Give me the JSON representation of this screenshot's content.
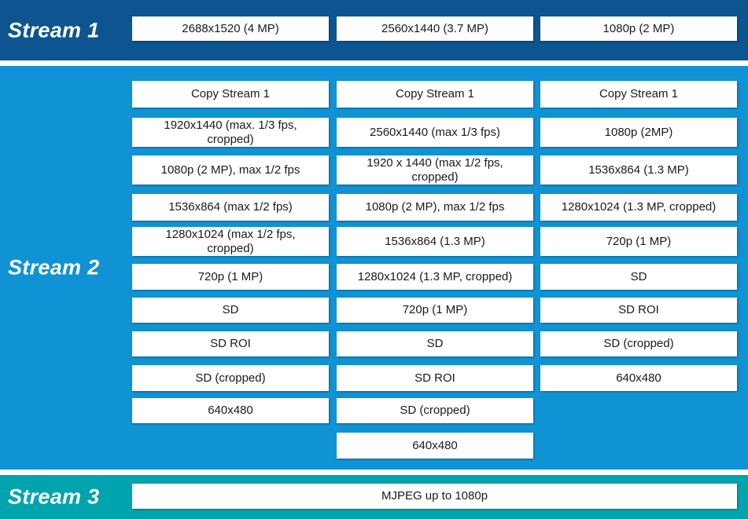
{
  "streams": [
    {
      "label": "Stream 1",
      "boxes": [
        "2688x1520 (4 MP)",
        "2560x1440 (3.7 MP)",
        "1080p (2 MP)"
      ]
    },
    {
      "label": "Stream 2",
      "columns": [
        {
          "boxes": [
            "Copy Stream 1",
            "1920x1440 (max. 1/3 fps, cropped)",
            "1080p (2 MP), max 1/2 fps",
            "1536x864 (max 1/2 fps)",
            "1280x1024 (max 1/2 fps, cropped)",
            "720p (1 MP)",
            "SD",
            "SD ROI",
            "SD (cropped)",
            "640x480"
          ]
        },
        {
          "boxes": [
            "Copy Stream 1",
            "2560x1440 (max 1/3 fps)",
            "1920 x 1440 (max 1/2 fps, cropped)",
            "1080p (2 MP), max 1/2 fps",
            "1536x864 (1.3 MP)",
            "1280x1024 (1.3 MP, cropped)",
            "720p (1 MP)",
            "SD",
            "SD ROI",
            "SD (cropped)",
            "640x480"
          ]
        },
        {
          "boxes": [
            "Copy Stream 1",
            "1080p (2MP)",
            "1536x864 (1.3 MP)",
            "1280x1024 (1.3 MP, cropped)",
            "720p (1 MP)",
            "SD",
            "SD ROI",
            "SD (cropped)",
            "640x480"
          ]
        }
      ]
    },
    {
      "label": "Stream 3",
      "boxes": [
        "MJPEG up to 1080p"
      ]
    }
  ],
  "colors": {
    "stream1_band": "#0d5591",
    "stream2_band": "#0f93d4",
    "stream3_band": "#00a4ae",
    "box_background": "#ffffff",
    "box_text": "#1a1a1a",
    "label_text": "#ffffff"
  }
}
